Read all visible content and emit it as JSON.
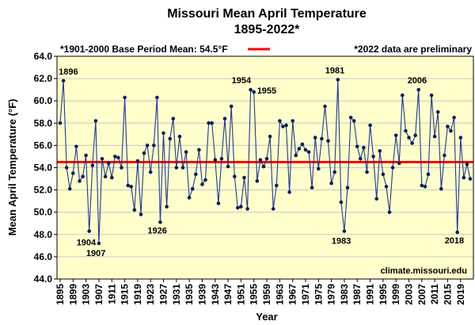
{
  "chart_data": {
    "type": "line",
    "title": "Missouri Mean April Temperature",
    "subtitle": "1895-2022*",
    "ylabel": "Mean April Temperature (°F)",
    "xlabel": "Year",
    "ylim": [
      44,
      64
    ],
    "yticks": [
      "44.0",
      "46.0",
      "48.0",
      "50.0",
      "52.0",
      "54.0",
      "56.0",
      "58.0",
      "60.0",
      "62.0",
      "64.0"
    ],
    "xticks": [
      "1895",
      "1899",
      "1903",
      "1907",
      "1911",
      "1915",
      "1919",
      "1923",
      "1927",
      "1931",
      "1935",
      "1939",
      "1943",
      "1947",
      "1951",
      "1955",
      "1959",
      "1963",
      "1967",
      "1971",
      "1975",
      "1979",
      "1983",
      "1987",
      "1991",
      "1995",
      "1999",
      "2003",
      "2007",
      "2011",
      "2015",
      "2019"
    ],
    "x_start": 1895,
    "x_end": 2022,
    "grid": true,
    "base_note": "*1901-2000 Base Period Mean: 54.5°F",
    "base_mean": 54.5,
    "prelim_note": "*2022 data are preliminary",
    "source": "climate.missouri.edu",
    "colors": {
      "plot_bg": "#ffffcc",
      "line": "#1f3a8a",
      "marker": "#0b1f5c",
      "mean_line": "#ff0000",
      "grid": "#c8c8c8"
    },
    "annotations": [
      {
        "label": "1896",
        "year": 1896
      },
      {
        "label": "1904",
        "year": 1904
      },
      {
        "label": "1907",
        "year": 1907
      },
      {
        "label": "1926",
        "year": 1926
      },
      {
        "label": "1954",
        "year": 1954
      },
      {
        "label": "1955",
        "year": 1955
      },
      {
        "label": "1981",
        "year": 1981
      },
      {
        "label": "1983",
        "year": 1983
      },
      {
        "label": "2006",
        "year": 2006
      },
      {
        "label": "2018",
        "year": 2018
      }
    ],
    "series": [
      {
        "values": [
          58.0,
          61.8,
          54.0,
          52.1,
          53.5,
          55.9,
          52.8,
          53.2,
          55.1,
          48.3,
          54.2,
          58.2,
          47.2,
          54.8,
          53.2,
          54.4,
          53.1,
          55.0,
          54.9,
          54.0,
          60.3,
          52.4,
          52.3,
          50.2,
          54.6,
          49.8,
          55.3,
          56.0,
          53.6,
          56.0,
          60.3,
          49.1,
          57.1,
          50.5,
          56.6,
          58.4,
          54.0,
          56.8,
          54.0,
          55.4,
          51.3,
          52.1,
          53.4,
          55.6,
          52.5,
          52.9,
          58.0,
          58.0,
          54.7,
          50.8,
          54.8,
          58.4,
          54.1,
          59.5,
          53.2,
          50.4,
          50.5,
          53.1,
          50.3,
          61.0,
          60.8,
          52.8,
          54.7,
          54.1,
          54.8,
          56.8,
          50.3,
          52.4,
          58.2,
          57.7,
          57.8,
          51.8,
          58.2,
          55.1,
          55.7,
          56.1,
          55.6,
          55.4,
          52.2,
          56.7,
          53.9,
          56.6,
          59.5,
          56.4,
          52.6,
          53.6,
          61.9,
          50.9,
          48.3,
          52.2,
          58.5,
          58.2,
          55.9,
          54.8,
          55.8,
          53.6,
          57.8,
          55.0,
          51.2,
          55.5,
          53.4,
          52.3,
          50.0,
          54.0,
          56.9,
          54.4,
          60.5,
          57.3,
          56.7,
          56.2,
          56.9,
          61.0,
          52.4,
          52.3,
          53.4,
          60.5,
          56.8,
          59.0,
          52.1,
          55.1,
          57.7,
          57.3,
          58.5,
          48.2,
          56.7,
          53.1,
          54.3,
          53.0
        ]
      }
    ]
  }
}
